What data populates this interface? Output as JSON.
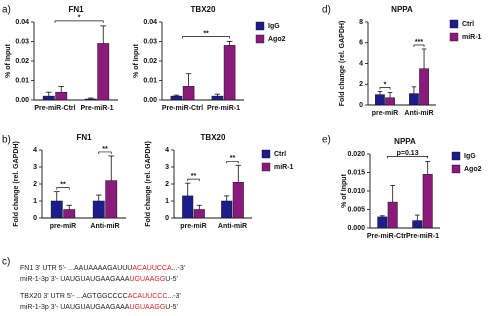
{
  "chart_data": [
    {
      "type": "bar",
      "panel_label": "a)",
      "title": "FN1",
      "ylabel": "% of Input",
      "categories": [
        "Pre-miR-Ctrl",
        "Pre-miR-1"
      ],
      "series": [
        {
          "color": "#1c1c8c",
          "values": [
            0.002,
            0.0005
          ],
          "errors": [
            0.002,
            0.0005
          ]
        },
        {
          "color": "#8a1a7c",
          "values": [
            0.004,
            0.029
          ],
          "errors": [
            0.003,
            0.009
          ]
        }
      ],
      "ylim": [
        0,
        0.04
      ],
      "yticks": [
        {
          "value": 0,
          "label": "0.00"
        },
        {
          "value": 0.01,
          "label": "0.01"
        },
        {
          "value": 0.02,
          "label": "0.02"
        },
        {
          "value": 0.03,
          "label": "0.03"
        },
        {
          "value": 0.04,
          "label": "0.04"
        }
      ],
      "brackets": "across",
      "annotations": [
        "*"
      ]
    },
    {
      "type": "bar",
      "title": "TBX20",
      "ylabel": "% of Input",
      "categories": [
        "Pre-miR-Ctrl",
        "Pre-miR-1"
      ],
      "series": [
        {
          "name": "IgG",
          "color": "#1c1c8c",
          "values": [
            0.002,
            0.002
          ],
          "errors": [
            0.0005,
            0.001
          ]
        },
        {
          "name": "Ago2",
          "color": "#8a1a7c",
          "values": [
            0.007,
            0.028
          ],
          "errors": [
            0.0065,
            0.002
          ]
        }
      ],
      "ylim": [
        0,
        0.04
      ],
      "yticks": [
        {
          "value": 0,
          "label": "0.00"
        },
        {
          "value": 0.01,
          "label": "0.01"
        },
        {
          "value": 0.02,
          "label": "0.02"
        },
        {
          "value": 0.03,
          "label": "0.03"
        },
        {
          "value": 0.04,
          "label": "0.04"
        }
      ],
      "legend": "right",
      "brackets": "across",
      "annotations": [
        "**"
      ]
    },
    {
      "type": "bar",
      "panel_label": "b)",
      "title": "FN1",
      "ylabel": "Fold change (rel. GAPDH)",
      "categories": [
        "pre-miR",
        "Anti-miR"
      ],
      "series": [
        {
          "color": "#1c1c8c",
          "values": [
            1.0,
            1.0
          ],
          "errors": [
            0.55,
            0.35
          ]
        },
        {
          "color": "#8a1a7c",
          "values": [
            0.5,
            2.2
          ],
          "errors": [
            0.25,
            1.45
          ]
        }
      ],
      "ylim": [
        0,
        4
      ],
      "yticks": [
        0,
        1,
        2,
        3,
        4
      ],
      "brackets": "within",
      "annotations": [
        "**",
        "**"
      ]
    },
    {
      "type": "bar",
      "title": "TBX20",
      "ylabel": "Fold change (rel. GAPDH)",
      "categories": [
        "pre-miR",
        "Anti-miR"
      ],
      "series": [
        {
          "name": "Ctrl",
          "color": "#1c1c8c",
          "values": [
            1.3,
            1.0
          ],
          "errors": [
            0.75,
            0.3
          ]
        },
        {
          "name": "miR-1",
          "color": "#8a1a7c",
          "values": [
            0.5,
            2.1
          ],
          "errors": [
            0.25,
            1.0
          ]
        }
      ],
      "ylim": [
        0,
        4
      ],
      "yticks": [
        0,
        1,
        2,
        3,
        4
      ],
      "legend": "right",
      "brackets": "within",
      "annotations": [
        "**",
        "**"
      ]
    },
    {
      "type": "bar",
      "panel_label": "d)",
      "title": "NPPA",
      "ylabel": "Fold change (rel. GAPDH)",
      "categories": [
        "pre-miR",
        "Anti-miR"
      ],
      "series": [
        {
          "name": "Ctrl",
          "color": "#1c1c8c",
          "values": [
            1.0,
            1.1
          ],
          "errors": [
            0.3,
            0.65
          ]
        },
        {
          "name": "miR-1",
          "color": "#8a1a7c",
          "values": [
            0.7,
            3.5
          ],
          "errors": [
            0.5,
            1.9
          ]
        }
      ],
      "ylim": [
        0,
        8
      ],
      "yticks": [
        0,
        2,
        4,
        6,
        8
      ],
      "legend": "right",
      "brackets": "within",
      "annotations": [
        "*",
        "***"
      ]
    },
    {
      "type": "bar",
      "panel_label": "e)",
      "title": "NPPA",
      "ylabel": "% of Input",
      "categories": [
        "Pre-miR-Ctrl",
        "Pre-miR-1"
      ],
      "series": [
        {
          "name": "IgG",
          "color": "#1c1c8c",
          "values": [
            0.003,
            0.002
          ],
          "errors": [
            0.0003,
            0.0015
          ]
        },
        {
          "name": "Ago2",
          "color": "#8a1a7c",
          "values": [
            0.007,
            0.0145
          ],
          "errors": [
            0.0045,
            0.0035
          ]
        }
      ],
      "ylim": [
        0,
        0.02
      ],
      "yticks": [
        {
          "value": 0,
          "label": "0.000"
        },
        {
          "value": 0.005,
          "label": "0.005"
        },
        {
          "value": 0.01,
          "label": "0.010"
        },
        {
          "value": 0.015,
          "label": "0.015"
        },
        {
          "value": 0.02,
          "label": "0.020"
        }
      ],
      "legend": "right",
      "brackets": "across",
      "annotations": [
        "p=0.13"
      ]
    }
  ],
  "panel_c": {
    "label": "c)",
    "lines": [
      [
        {
          "text": "FN1 3' UTR 5'- ...AAUAAAAGAUUU",
          "color": "#222222"
        },
        {
          "text": "ACAUUCCA",
          "color": "#e02020"
        },
        {
          "text": "...-3'",
          "color": "#222222"
        }
      ],
      [
        {
          "text": "miR-1-3p 3'- UAUGUAUGAAGAAA",
          "color": "#222222"
        },
        {
          "text": "UGUAAGG",
          "color": "#e02020"
        },
        {
          "text": "U-5'",
          "color": "#222222"
        }
      ],
      [
        {
          "text": "TBX20 3' UTR 5'- ...AGTGGCCCC",
          "color": "#222222"
        },
        {
          "text": "ACAUUCCC",
          "color": "#e02020"
        },
        {
          "text": "...-3'",
          "color": "#222222"
        }
      ],
      [
        {
          "text": "miR-1-3p 3'- UAUGUAUGAAGAAA",
          "color": "#222222"
        },
        {
          "text": "UGUAAGG",
          "color": "#e02020"
        },
        {
          "text": "U-5'",
          "color": "#222222"
        }
      ]
    ]
  }
}
